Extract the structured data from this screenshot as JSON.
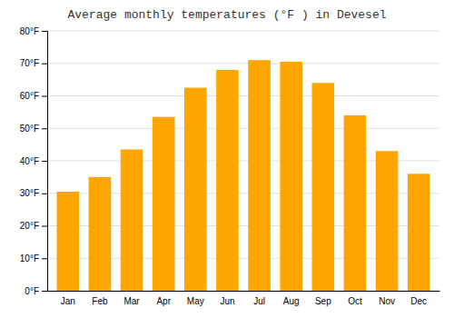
{
  "chart_data": {
    "type": "bar",
    "title": "Average monthly temperatures (°F ) in Devesel",
    "categories": [
      "Jan",
      "Feb",
      "Mar",
      "Apr",
      "May",
      "Jun",
      "Jul",
      "Aug",
      "Sep",
      "Oct",
      "Nov",
      "Dec"
    ],
    "values": [
      30.5,
      35.0,
      43.5,
      53.5,
      62.5,
      68.0,
      71.0,
      70.5,
      64.0,
      54.0,
      43.0,
      36.0
    ],
    "color": "#FFA500",
    "ylim": [
      0,
      80
    ],
    "yticks": [
      {
        "value": 0,
        "label": "0°F"
      },
      {
        "value": 10,
        "label": "10°F"
      },
      {
        "value": 20,
        "label": "20°F"
      },
      {
        "value": 30,
        "label": "30°F"
      },
      {
        "value": 40,
        "label": "40°F"
      },
      {
        "value": 50,
        "label": "50°F"
      },
      {
        "value": 60,
        "label": "60°F"
      },
      {
        "value": 70,
        "label": "70°F"
      },
      {
        "value": 80,
        "label": "80°F"
      }
    ],
    "grid": true
  }
}
